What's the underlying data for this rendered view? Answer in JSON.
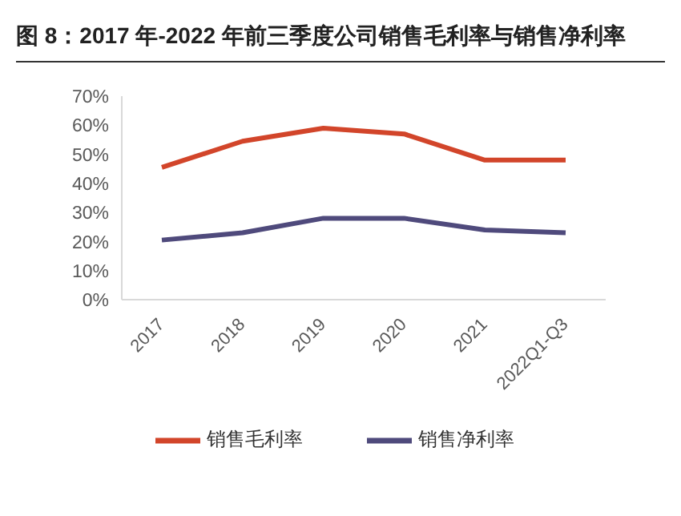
{
  "chart_data": {
    "type": "line",
    "title": "图 8：2017 年-2022 年前三季度公司销售毛利率与销售净利率",
    "categories": [
      "2017",
      "2018",
      "2019",
      "2020",
      "2021",
      "2022Q1-Q3"
    ],
    "series": [
      {
        "name": "销售毛利率",
        "color": "#d2452a",
        "values": [
          45.5,
          54.5,
          59,
          57,
          48,
          48
        ]
      },
      {
        "name": "销售净利率",
        "color": "#4f4a7c",
        "values": [
          20.5,
          23,
          28,
          28,
          24,
          23
        ]
      }
    ],
    "ylim": [
      0,
      70
    ],
    "yticks": [
      {
        "value": 0,
        "label": "0%"
      },
      {
        "value": 10,
        "label": "10%"
      },
      {
        "value": 20,
        "label": "20%"
      },
      {
        "value": 30,
        "label": "30%"
      },
      {
        "value": 40,
        "label": "40%"
      },
      {
        "value": 50,
        "label": "50%"
      },
      {
        "value": 60,
        "label": "60%"
      },
      {
        "value": 70,
        "label": "70%"
      }
    ],
    "grid": false,
    "legend": "bottom",
    "marker": "none",
    "line_style": "solid"
  }
}
